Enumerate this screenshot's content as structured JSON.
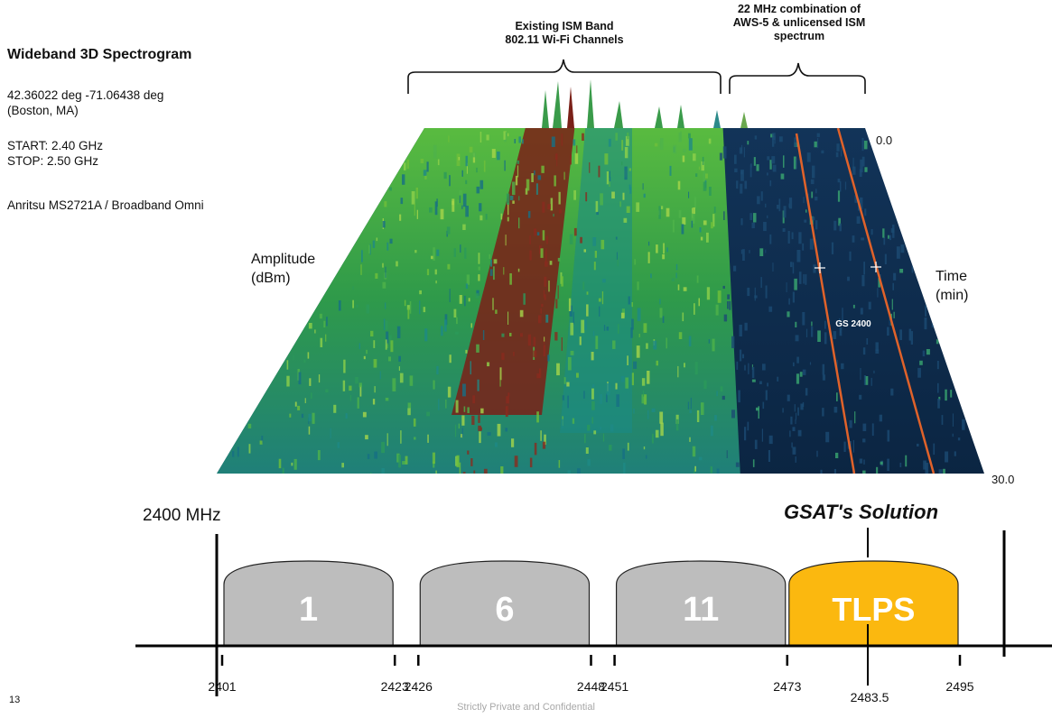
{
  "info": {
    "title": "Wideband 3D Spectrogram",
    "coords": "42.36022 deg -71.06438 deg",
    "location": "(Boston, MA)",
    "start": "START:  2.40 GHz",
    "stop": "STOP:  2.50 GHz",
    "instrument": "Anritsu MS2721A / Broadband Omni"
  },
  "annotations": {
    "ism_line1": "Existing ISM Band",
    "ism_line2": "802.11 Wi-Fi Channels",
    "aws_line1": "22 MHz combination of",
    "aws_line2": "AWS-5 & unlicensed ISM",
    "aws_line3": "spectrum"
  },
  "spectrogram": {
    "amplitude_line1": "Amplitude",
    "amplitude_line2": "(dBm)",
    "time_line1": "Time",
    "time_line2": "(min)",
    "time_start": "0.0",
    "time_end": "30.0",
    "gs_label": "GS 2400"
  },
  "channel_plan": {
    "start_label": "2400 MHz",
    "solution_label": "GSAT's Solution",
    "channels": [
      {
        "name": "1",
        "start": 2401,
        "end": 2423,
        "color": "#bdbdbd"
      },
      {
        "name": "6",
        "start": 2426,
        "end": 2448,
        "color": "#bdbdbd"
      },
      {
        "name": "11",
        "start": 2451,
        "end": 2473,
        "color": "#bdbdbd"
      },
      {
        "name": "TLPS",
        "start": 2473,
        "end": 2495,
        "color": "#fbb80f"
      }
    ],
    "ticks": [
      "2401",
      "2423",
      "2426",
      "2448",
      "2451",
      "2473",
      "2483.5",
      "2495"
    ]
  },
  "colors": {
    "wifi_band": "#2f9a4a",
    "hot_band": "#7a2018",
    "quiet_band": "#0f2c4e",
    "gs_lines": "#e0622a",
    "tlps": "#fbb80f"
  },
  "footer": {
    "confidential": "Strictly Private and Confidential",
    "page_number": "13"
  }
}
